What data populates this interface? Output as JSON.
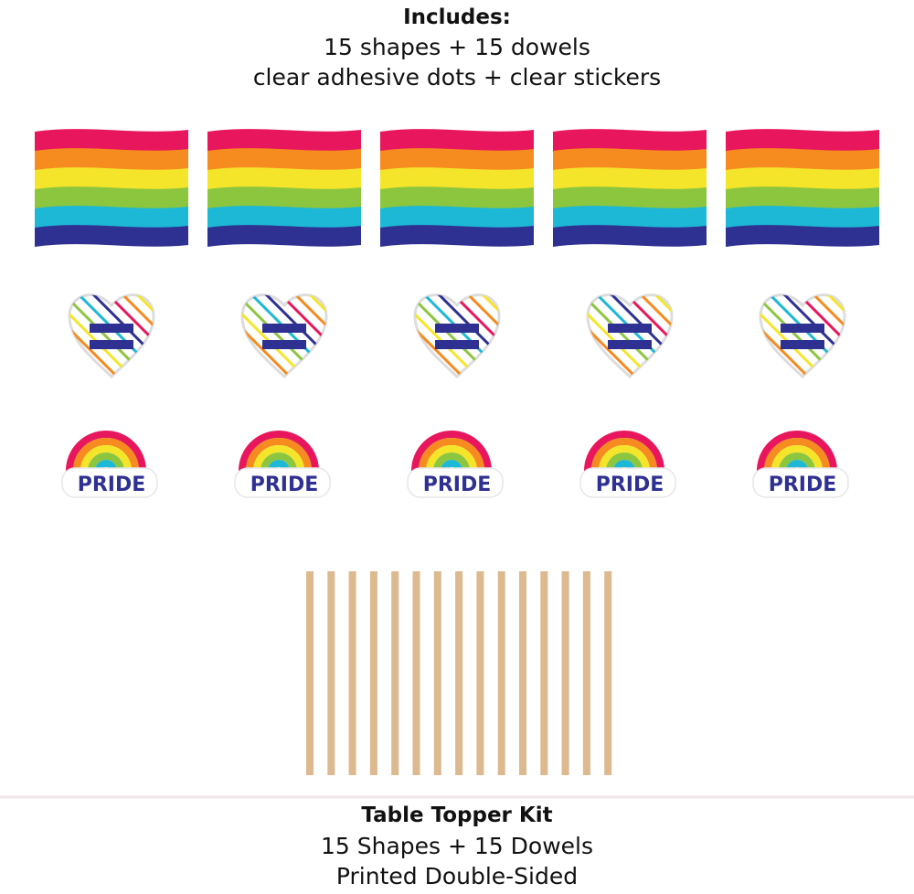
{
  "header": {
    "title": "Includes:",
    "line1": "15 shapes + 15 dowels",
    "line2": "clear adhesive dots + clear stickers"
  },
  "items": {
    "rainbow_label": "PRIDE"
  },
  "footer": {
    "title": "Table Topper Kit",
    "line1": "15 Shapes + 15 Dowels",
    "line2": "Printed Double-Sided"
  }
}
